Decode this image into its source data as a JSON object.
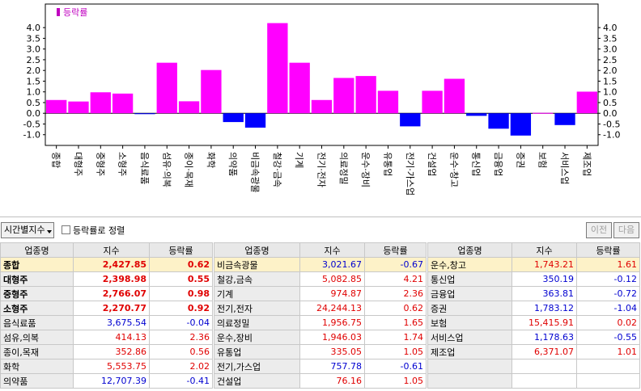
{
  "chart_data": {
    "type": "bar",
    "legend": "등락률",
    "legend_position": "top-left",
    "categories": [
      "종합",
      "대형주",
      "중형주",
      "소형주",
      "음식료품",
      "섬유·의복",
      "종이·목재",
      "화학",
      "의약품",
      "비금속광물",
      "철강·금속",
      "기계",
      "전기·전자",
      "의료정밀",
      "운수·장비",
      "유통업",
      "전기·가스업",
      "건설업",
      "운수·창고",
      "통신업",
      "금융업",
      "증권",
      "보험",
      "서비스업",
      "제조업"
    ],
    "values": [
      0.62,
      0.55,
      0.98,
      0.92,
      -0.04,
      2.36,
      0.56,
      2.02,
      -0.41,
      -0.67,
      4.21,
      2.36,
      0.62,
      1.65,
      1.74,
      1.05,
      -0.61,
      1.05,
      1.61,
      -0.12,
      -0.72,
      -1.04,
      0.02,
      -0.55,
      1.01
    ],
    "yticks": [
      "4.0",
      "3.5",
      "3.0",
      "2.5",
      "2.0",
      "1.5",
      "1.0",
      "0.5",
      "0.0",
      "-0.5",
      "-1.0"
    ],
    "ylim": [
      -1.5,
      5.1
    ],
    "colors": {
      "positive": "#ff00ff",
      "negative": "#0000ff",
      "legend": "#c000c0"
    }
  },
  "toolbar": {
    "time_select": "시간별지수",
    "sort_label": "등락률로 정렬",
    "prev": "이전",
    "next": "다음"
  },
  "table": {
    "headers": [
      "업종명",
      "지수",
      "등락률"
    ],
    "col1": [
      {
        "name": "종합",
        "index": "2,427.85",
        "rate": "0.62",
        "dir": "up",
        "bold": true,
        "selected": true
      },
      {
        "name": "대형주",
        "index": "2,398.98",
        "rate": "0.55",
        "dir": "up",
        "bold": true
      },
      {
        "name": "중형주",
        "index": "2,766.07",
        "rate": "0.98",
        "dir": "up",
        "bold": true
      },
      {
        "name": "소형주",
        "index": "2,270.77",
        "rate": "0.92",
        "dir": "up",
        "bold": true
      },
      {
        "name": "음식료품",
        "index": "3,675.54",
        "rate": "-0.04",
        "dir": "down"
      },
      {
        "name": "섬유,의복",
        "index": "414.13",
        "rate": "2.36",
        "dir": "up"
      },
      {
        "name": "종이,목재",
        "index": "352.86",
        "rate": "0.56",
        "dir": "up"
      },
      {
        "name": "화학",
        "index": "5,553.75",
        "rate": "2.02",
        "dir": "up"
      },
      {
        "name": "의약품",
        "index": "12,707.39",
        "rate": "-0.41",
        "dir": "down"
      }
    ],
    "col2": [
      {
        "name": "비금속광물",
        "index": "3,021.67",
        "rate": "-0.67",
        "dir": "down",
        "selected": true
      },
      {
        "name": "철강,금속",
        "index": "5,082.85",
        "rate": "4.21",
        "dir": "up"
      },
      {
        "name": "기계",
        "index": "974.87",
        "rate": "2.36",
        "dir": "up"
      },
      {
        "name": "전기,전자",
        "index": "24,244.13",
        "rate": "0.62",
        "dir": "up"
      },
      {
        "name": "의료정밀",
        "index": "1,956.75",
        "rate": "1.65",
        "dir": "up"
      },
      {
        "name": "운수,장비",
        "index": "1,946.03",
        "rate": "1.74",
        "dir": "up"
      },
      {
        "name": "유통업",
        "index": "335.05",
        "rate": "1.05",
        "dir": "up"
      },
      {
        "name": "전기,가스업",
        "index": "757.78",
        "rate": "-0.61",
        "dir": "down"
      },
      {
        "name": "건설업",
        "index": "76.16",
        "rate": "1.05",
        "dir": "up"
      }
    ],
    "col3": [
      {
        "name": "운수,창고",
        "index": "1,743.21",
        "rate": "1.61",
        "dir": "up",
        "selected": true
      },
      {
        "name": "통신업",
        "index": "350.19",
        "rate": "-0.12",
        "dir": "down"
      },
      {
        "name": "금융업",
        "index": "363.81",
        "rate": "-0.72",
        "dir": "down"
      },
      {
        "name": "증권",
        "index": "1,783.12",
        "rate": "-1.04",
        "dir": "down"
      },
      {
        "name": "보험",
        "index": "15,415.91",
        "rate": "0.02",
        "dir": "up"
      },
      {
        "name": "서비스업",
        "index": "1,178.63",
        "rate": "-0.55",
        "dir": "down"
      },
      {
        "name": "제조업",
        "index": "6,371.07",
        "rate": "1.01",
        "dir": "up"
      },
      {
        "name": "",
        "index": "",
        "rate": "",
        "dir": ""
      },
      {
        "name": "",
        "index": "",
        "rate": "",
        "dir": ""
      }
    ]
  }
}
